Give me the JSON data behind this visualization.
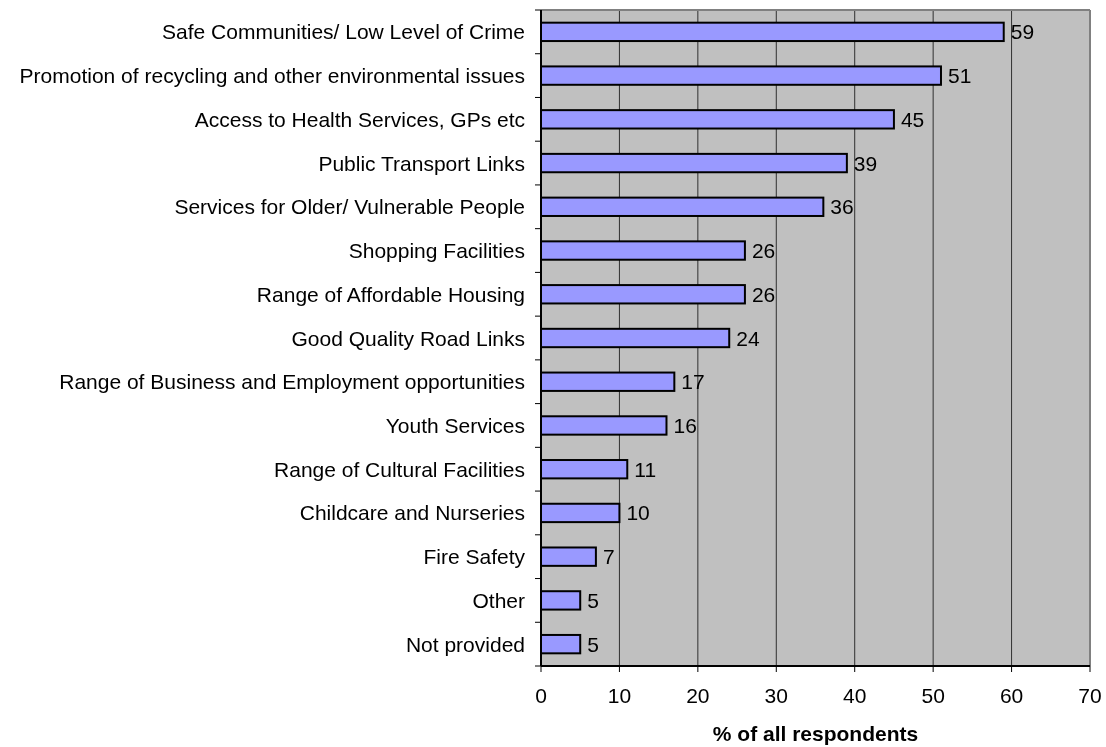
{
  "chart_data": {
    "type": "bar",
    "orientation": "horizontal",
    "categories": [
      "Safe Communities/ Low Level of Crime",
      "Promotion of recycling and other environmental issues",
      "Access to Health Services, GPs etc",
      "Public Transport Links",
      "Services for Older/ Vulnerable People",
      "Shopping Facilities",
      "Range of Affordable Housing",
      "Good Quality Road Links",
      "Range of Business and Employment opportunities",
      "Youth Services",
      "Range of Cultural Facilities",
      "Childcare and Nurseries",
      "Fire Safety",
      "Other",
      "Not provided"
    ],
    "values": [
      59,
      51,
      45,
      39,
      36,
      26,
      26,
      24,
      17,
      16,
      11,
      10,
      7,
      5,
      5
    ],
    "color": "#9999ff",
    "xlim": [
      0,
      70
    ],
    "xticks": [
      0,
      10,
      20,
      30,
      40,
      50,
      60,
      70
    ],
    "grid": "x",
    "data_labels": true,
    "xlabel": "% of all respondents"
  }
}
